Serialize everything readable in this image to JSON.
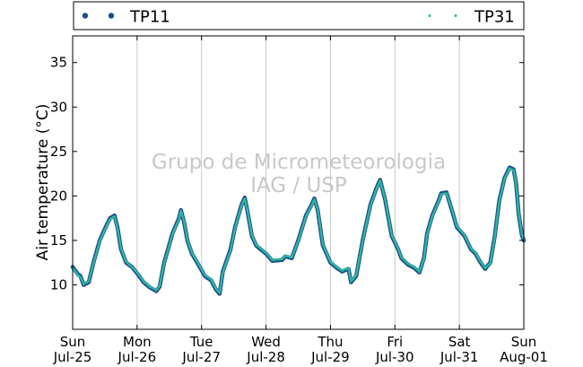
{
  "chart_data": {
    "type": "scatter",
    "ylabel": "Air temperature (°C)",
    "ylim": [
      5,
      38
    ],
    "yticks": [
      10,
      15,
      20,
      25,
      30,
      35
    ],
    "xlim": [
      0,
      7
    ],
    "xticks": [
      {
        "x": 0,
        "day": "Sun",
        "date": "Jul-25"
      },
      {
        "x": 1,
        "day": "Mon",
        "date": "Jul-26"
      },
      {
        "x": 2,
        "day": "Tue",
        "date": "Jul-27"
      },
      {
        "x": 3,
        "day": "Wed",
        "date": "Jul-28"
      },
      {
        "x": 4,
        "day": "Thu",
        "date": "Jul-29"
      },
      {
        "x": 5,
        "day": "Fri",
        "date": "Jul-30"
      },
      {
        "x": 6,
        "day": "Sat",
        "date": "Jul-31"
      },
      {
        "x": 7,
        "day": "Sun",
        "date": "Aug-01"
      }
    ],
    "grid": "vertical",
    "legend_position": "top",
    "watermark": [
      "Grupo de Micrometeorologia",
      "IAG / USP"
    ],
    "series": [
      {
        "name": "TP11",
        "color": "#1f4e8c",
        "marker": "circle",
        "points": [
          [
            0.0,
            12.0
          ],
          [
            0.08,
            11.2
          ],
          [
            0.12,
            11.0
          ],
          [
            0.17,
            10.0
          ],
          [
            0.25,
            10.3
          ],
          [
            0.33,
            12.7
          ],
          [
            0.42,
            15.0
          ],
          [
            0.5,
            16.3
          ],
          [
            0.58,
            17.5
          ],
          [
            0.65,
            17.8
          ],
          [
            0.7,
            16.3
          ],
          [
            0.75,
            14.0
          ],
          [
            0.83,
            12.5
          ],
          [
            0.92,
            12.0
          ],
          [
            1.0,
            11.3
          ],
          [
            1.1,
            10.3
          ],
          [
            1.2,
            9.7
          ],
          [
            1.3,
            9.3
          ],
          [
            1.35,
            9.8
          ],
          [
            1.42,
            12.5
          ],
          [
            1.55,
            15.8
          ],
          [
            1.65,
            17.5
          ],
          [
            1.68,
            18.4
          ],
          [
            1.73,
            17.0
          ],
          [
            1.78,
            15.0
          ],
          [
            1.85,
            13.5
          ],
          [
            1.95,
            12.3
          ],
          [
            2.05,
            11.0
          ],
          [
            2.15,
            10.5
          ],
          [
            2.22,
            9.5
          ],
          [
            2.28,
            9.0
          ],
          [
            2.33,
            11.5
          ],
          [
            2.45,
            14.0
          ],
          [
            2.52,
            16.5
          ],
          [
            2.62,
            19.0
          ],
          [
            2.67,
            19.8
          ],
          [
            2.72,
            18.0
          ],
          [
            2.78,
            15.5
          ],
          [
            2.85,
            14.4
          ],
          [
            3.0,
            13.5
          ],
          [
            3.1,
            12.7
          ],
          [
            3.25,
            12.8
          ],
          [
            3.3,
            13.2
          ],
          [
            3.4,
            13.0
          ],
          [
            3.5,
            15.0
          ],
          [
            3.62,
            17.8
          ],
          [
            3.72,
            19.2
          ],
          [
            3.75,
            19.7
          ],
          [
            3.8,
            18.5
          ],
          [
            3.88,
            14.5
          ],
          [
            4.0,
            12.5
          ],
          [
            4.1,
            11.9
          ],
          [
            4.18,
            11.5
          ],
          [
            4.28,
            11.8
          ],
          [
            4.32,
            10.3
          ],
          [
            4.4,
            11.0
          ],
          [
            4.5,
            15.0
          ],
          [
            4.62,
            19.0
          ],
          [
            4.72,
            21.0
          ],
          [
            4.77,
            21.8
          ],
          [
            4.85,
            19.5
          ],
          [
            4.95,
            15.5
          ],
          [
            5.05,
            14.0
          ],
          [
            5.1,
            13.0
          ],
          [
            5.2,
            12.3
          ],
          [
            5.3,
            11.9
          ],
          [
            5.38,
            11.4
          ],
          [
            5.45,
            13.0
          ],
          [
            5.5,
            15.8
          ],
          [
            5.58,
            17.8
          ],
          [
            5.68,
            19.5
          ],
          [
            5.72,
            20.3
          ],
          [
            5.8,
            20.4
          ],
          [
            5.88,
            18.5
          ],
          [
            5.96,
            16.5
          ],
          [
            6.08,
            15.5
          ],
          [
            6.18,
            14.0
          ],
          [
            6.25,
            13.5
          ],
          [
            6.33,
            12.5
          ],
          [
            6.4,
            11.8
          ],
          [
            6.48,
            12.5
          ],
          [
            6.55,
            15.5
          ],
          [
            6.62,
            19.5
          ],
          [
            6.7,
            22.0
          ],
          [
            6.78,
            23.2
          ],
          [
            6.84,
            23.0
          ],
          [
            6.88,
            21.5
          ],
          [
            6.92,
            18.0
          ],
          [
            6.97,
            15.6
          ],
          [
            7.0,
            15.0
          ]
        ]
      },
      {
        "name": "TP31",
        "color": "#2fb8a0",
        "marker": "dot",
        "points": [
          [
            0.0,
            11.9
          ],
          [
            0.08,
            11.1
          ],
          [
            0.12,
            10.9
          ],
          [
            0.17,
            10.1
          ],
          [
            0.25,
            10.4
          ],
          [
            0.33,
            12.6
          ],
          [
            0.42,
            14.9
          ],
          [
            0.5,
            16.2
          ],
          [
            0.58,
            17.4
          ],
          [
            0.65,
            17.7
          ],
          [
            0.7,
            16.2
          ],
          [
            0.75,
            14.1
          ],
          [
            0.83,
            12.6
          ],
          [
            0.92,
            12.0
          ],
          [
            1.0,
            11.4
          ],
          [
            1.1,
            10.4
          ],
          [
            1.2,
            9.8
          ],
          [
            1.3,
            9.4
          ],
          [
            1.35,
            9.9
          ],
          [
            1.42,
            12.4
          ],
          [
            1.55,
            15.7
          ],
          [
            1.65,
            17.4
          ],
          [
            1.68,
            18.3
          ],
          [
            1.73,
            17.1
          ],
          [
            1.78,
            15.1
          ],
          [
            1.85,
            13.6
          ],
          [
            1.95,
            12.4
          ],
          [
            2.05,
            11.1
          ],
          [
            2.15,
            10.6
          ],
          [
            2.22,
            9.6
          ],
          [
            2.28,
            9.1
          ],
          [
            2.33,
            11.4
          ],
          [
            2.45,
            13.9
          ],
          [
            2.52,
            16.4
          ],
          [
            2.62,
            18.9
          ],
          [
            2.67,
            19.7
          ],
          [
            2.72,
            18.1
          ],
          [
            2.78,
            15.6
          ],
          [
            2.85,
            14.5
          ],
          [
            3.0,
            13.6
          ],
          [
            3.1,
            12.8
          ],
          [
            3.25,
            12.9
          ],
          [
            3.3,
            13.3
          ],
          [
            3.4,
            13.1
          ],
          [
            3.5,
            14.9
          ],
          [
            3.62,
            17.7
          ],
          [
            3.72,
            19.1
          ],
          [
            3.75,
            19.6
          ],
          [
            3.8,
            18.6
          ],
          [
            3.88,
            14.6
          ],
          [
            4.0,
            12.6
          ],
          [
            4.1,
            12.0
          ],
          [
            4.18,
            11.6
          ],
          [
            4.28,
            11.9
          ],
          [
            4.32,
            10.4
          ],
          [
            4.4,
            11.1
          ],
          [
            4.5,
            14.9
          ],
          [
            4.62,
            18.9
          ],
          [
            4.72,
            20.9
          ],
          [
            4.77,
            21.7
          ],
          [
            4.85,
            19.6
          ],
          [
            4.95,
            15.6
          ],
          [
            5.05,
            14.1
          ],
          [
            5.1,
            13.1
          ],
          [
            5.2,
            12.4
          ],
          [
            5.3,
            12.0
          ],
          [
            5.38,
            11.5
          ],
          [
            5.45,
            12.9
          ],
          [
            5.5,
            15.7
          ],
          [
            5.58,
            17.7
          ],
          [
            5.68,
            19.4
          ],
          [
            5.72,
            20.2
          ],
          [
            5.8,
            20.3
          ],
          [
            5.88,
            18.6
          ],
          [
            5.96,
            16.6
          ],
          [
            6.08,
            15.6
          ],
          [
            6.18,
            14.1
          ],
          [
            6.25,
            13.6
          ],
          [
            6.33,
            12.6
          ],
          [
            6.4,
            11.9
          ],
          [
            6.48,
            12.4
          ],
          [
            6.55,
            15.4
          ],
          [
            6.62,
            19.4
          ],
          [
            6.7,
            21.9
          ],
          [
            6.78,
            23.1
          ],
          [
            6.84,
            22.9
          ],
          [
            6.88,
            21.6
          ],
          [
            6.92,
            18.1
          ],
          [
            6.97,
            15.7
          ],
          [
            7.0,
            15.1
          ]
        ]
      }
    ]
  }
}
